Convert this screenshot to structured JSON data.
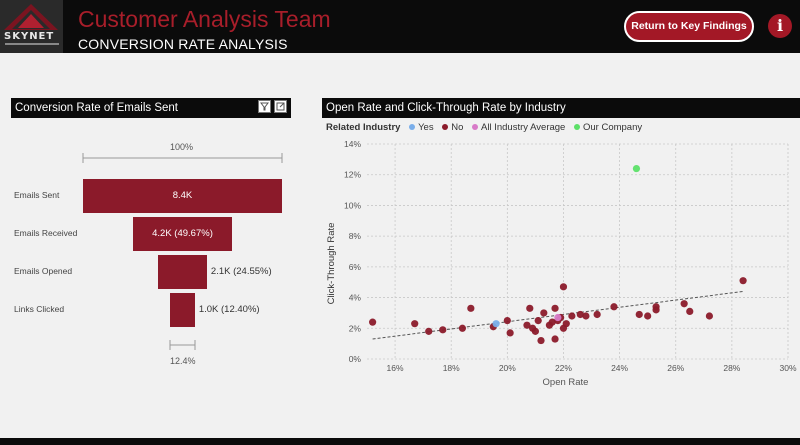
{
  "header": {
    "logo_text": "SKYNET",
    "title": "Customer Analysis Team",
    "subtitle": "CONVERSION RATE ANALYSIS",
    "key_button_label": "Return to Key Findings",
    "info_label": "i"
  },
  "colors": {
    "brand_red": "#a81e2a",
    "bar_red": "#8b1a2a",
    "legend_yes": "#7aaeea",
    "legend_no": "#8b1a2a",
    "legend_avg": "#d87ac8",
    "legend_company": "#5ce068"
  },
  "funnel": {
    "title": "Conversion Rate of Emails Sent",
    "filter_icon": "funnel-filter-icon",
    "focus_icon": "focus-mode-icon",
    "top_pct": "100%",
    "bottom_pct": "12.4%",
    "stages": [
      {
        "label": "Emails Sent",
        "value_text": "8.4K",
        "fraction": 1.0
      },
      {
        "label": "Emails Received",
        "value_text": "4.2K (49.67%)",
        "fraction": 0.4967
      },
      {
        "label": "Emails Opened",
        "value_text": "2.1K (24.55%)",
        "fraction": 0.2455
      },
      {
        "label": "Links Clicked",
        "value_text": "1.0K (12.40%)",
        "fraction": 0.124
      }
    ]
  },
  "scatter": {
    "title": "Open Rate and Click-Through Rate by Industry",
    "legend_title": "Related Industry",
    "legend": [
      {
        "label": "Yes",
        "color": "#7aaeea"
      },
      {
        "label": "No",
        "color": "#8b1a2a"
      },
      {
        "label": "All Industry Average",
        "color": "#d87ac8"
      },
      {
        "label": "Our Company",
        "color": "#5ce068"
      }
    ]
  },
  "chart_data": {
    "type": "scatter",
    "title": "Open Rate and Click-Through Rate by Industry",
    "xlabel": "Open Rate",
    "ylabel": "Click-Through Rate",
    "xlim": [
      15,
      30
    ],
    "ylim": [
      0,
      14
    ],
    "x_ticks": [
      "16%",
      "18%",
      "20%",
      "22%",
      "24%",
      "26%",
      "28%",
      "30%"
    ],
    "x_tick_values": [
      16,
      18,
      20,
      22,
      24,
      26,
      28,
      30
    ],
    "y_ticks": [
      "0%",
      "2%",
      "4%",
      "6%",
      "8%",
      "10%",
      "12%",
      "14%"
    ],
    "y_tick_values": [
      0,
      2,
      4,
      6,
      8,
      10,
      12,
      14
    ],
    "grid": true,
    "legend_position": "top-left",
    "trendline": {
      "x": [
        15.2,
        28.4
      ],
      "y": [
        1.3,
        4.4
      ]
    },
    "series": [
      {
        "name": "No",
        "color": "#8b1a2a",
        "points": [
          [
            15.2,
            2.4
          ],
          [
            16.7,
            2.3
          ],
          [
            17.2,
            1.8
          ],
          [
            17.7,
            1.9
          ],
          [
            18.4,
            2.0
          ],
          [
            18.7,
            3.3
          ],
          [
            19.5,
            2.1
          ],
          [
            20.0,
            2.5
          ],
          [
            20.1,
            1.7
          ],
          [
            20.7,
            2.2
          ],
          [
            20.8,
            3.3
          ],
          [
            20.9,
            2.0
          ],
          [
            21.0,
            1.8
          ],
          [
            21.1,
            2.5
          ],
          [
            21.2,
            1.2
          ],
          [
            21.3,
            3.0
          ],
          [
            21.5,
            2.2
          ],
          [
            21.6,
            2.4
          ],
          [
            21.7,
            1.3
          ],
          [
            21.7,
            3.3
          ],
          [
            21.8,
            2.5
          ],
          [
            21.9,
            2.7
          ],
          [
            22.0,
            2.0
          ],
          [
            22.1,
            2.3
          ],
          [
            22.0,
            4.7
          ],
          [
            22.3,
            2.8
          ],
          [
            22.6,
            2.9
          ],
          [
            22.8,
            2.8
          ],
          [
            23.2,
            2.9
          ],
          [
            23.8,
            3.4
          ],
          [
            24.7,
            2.9
          ],
          [
            25.0,
            2.8
          ],
          [
            25.3,
            3.2
          ],
          [
            25.3,
            3.4
          ],
          [
            26.3,
            3.6
          ],
          [
            26.5,
            3.1
          ],
          [
            27.2,
            2.8
          ],
          [
            28.4,
            5.1
          ]
        ]
      },
      {
        "name": "Yes",
        "color": "#7aaeea",
        "points": [
          [
            19.6,
            2.3
          ]
        ]
      },
      {
        "name": "All Industry Average",
        "color": "#d87ac8",
        "points": [
          [
            21.8,
            2.7
          ]
        ]
      },
      {
        "name": "Our Company",
        "color": "#5ce068",
        "points": [
          [
            24.6,
            12.4
          ]
        ]
      }
    ]
  }
}
